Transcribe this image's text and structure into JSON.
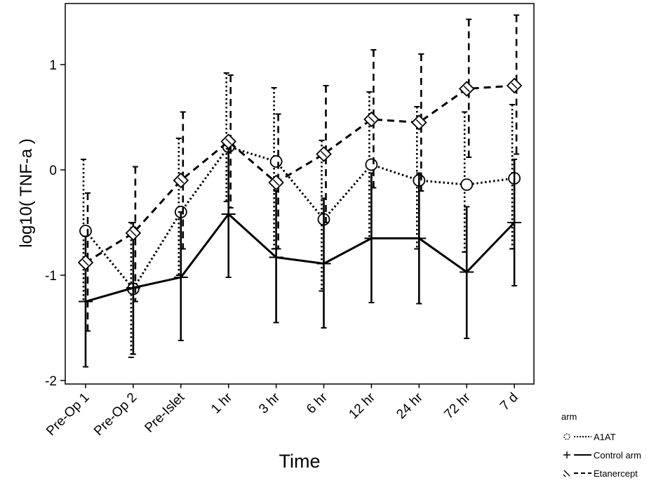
{
  "chart_data": {
    "type": "line",
    "xlabel": "Time",
    "ylabel": "log10( TNF-a )",
    "categories": [
      "Pre-Op 1",
      "Pre-Op 2",
      "Pre-Islet",
      "1 hr",
      "3 hr",
      "6 hr",
      "12 hr",
      "24 hr",
      "72 hr",
      "7 d"
    ],
    "ylim": [
      -2,
      1.5
    ],
    "yticks": [
      {
        "value": -2,
        "label": "-2"
      },
      {
        "value": -1,
        "label": "-1"
      },
      {
        "value": 0,
        "label": "0"
      },
      {
        "value": 1,
        "label": "1"
      }
    ],
    "grid": false,
    "legend": {
      "title": "arm",
      "position": "bottom-right"
    },
    "series": [
      {
        "name": "A1AT",
        "marker": "circle",
        "line_style": "dotted",
        "values": [
          -0.58,
          -1.13,
          -0.4,
          0.22,
          0.08,
          -0.47,
          0.05,
          -0.1,
          -0.14,
          -0.08
        ],
        "err_low": [
          -1.25,
          -1.78,
          -1.0,
          -0.3,
          -0.75,
          -1.15,
          -0.65,
          -0.75,
          -0.78,
          -0.75
        ],
        "err_high": [
          0.1,
          -0.5,
          0.3,
          0.92,
          0.78,
          0.28,
          0.74,
          0.6,
          0.55,
          0.62
        ]
      },
      {
        "name": "Control arm",
        "marker": "plus",
        "line_style": "solid",
        "values": [
          -1.25,
          -1.12,
          -1.02,
          -0.42,
          -0.83,
          -0.89,
          -0.65,
          -0.65,
          -0.97,
          -0.5
        ],
        "err_low": [
          -1.87,
          -1.75,
          -1.62,
          -1.02,
          -1.45,
          -1.5,
          -1.26,
          -1.27,
          -1.6,
          -1.1
        ],
        "err_high": [
          -0.63,
          -0.5,
          -0.4,
          0.2,
          -0.2,
          -0.27,
          -0.03,
          -0.03,
          -0.35,
          0.1
        ]
      },
      {
        "name": "Etanercept",
        "marker": "diamond",
        "line_style": "dashed",
        "values": [
          -0.88,
          -0.6,
          -0.1,
          0.27,
          -0.12,
          0.15,
          0.48,
          0.45,
          0.77,
          0.8
        ],
        "err_low": [
          -1.53,
          -1.25,
          -0.75,
          -0.36,
          -0.75,
          -0.5,
          -0.17,
          -0.2,
          0.12,
          0.15
        ],
        "err_high": [
          -0.22,
          0.03,
          0.55,
          0.9,
          0.53,
          0.8,
          1.14,
          1.1,
          1.43,
          1.47
        ]
      }
    ]
  }
}
